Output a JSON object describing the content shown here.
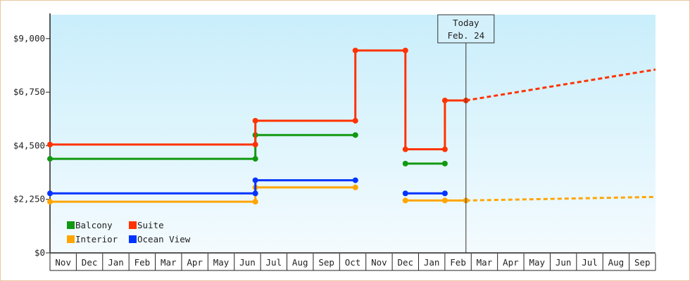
{
  "chart_data": {
    "type": "line",
    "title": "",
    "xlabel": "",
    "ylabel": "",
    "ylim": [
      0,
      10000
    ],
    "yticks": [
      "$0",
      "$2,250",
      "$4,500",
      "$6,750",
      "$9,000"
    ],
    "ytick_values": [
      0,
      2250,
      4500,
      6750,
      9000
    ],
    "months": [
      "Nov",
      "Dec",
      "Jan",
      "Feb",
      "Mar",
      "Apr",
      "May",
      "Jun",
      "Jul",
      "Aug",
      "Sep",
      "Oct",
      "Nov",
      "Dec",
      "Jan",
      "Feb",
      "Mar",
      "Apr",
      "May",
      "Jun",
      "Jul",
      "Aug",
      "Sep"
    ],
    "grid": false,
    "legend_position": "bottom-left",
    "today": {
      "line1": "Today",
      "line2": "Feb. 24",
      "x": 15.8
    },
    "series": [
      {
        "name": "Balcony",
        "color": "#119911",
        "segments": [
          [
            [
              0,
              3950
            ],
            [
              7.8,
              3950
            ],
            [
              7.8,
              4950
            ],
            [
              11.6,
              4950
            ]
          ],
          [
            [
              13.5,
              3750
            ],
            [
              15.0,
              3750
            ]
          ]
        ],
        "markers": [
          [
            0,
            3950
          ],
          [
            7.8,
            3950
          ],
          [
            7.8,
            4950
          ],
          [
            11.6,
            4950
          ],
          [
            13.5,
            3750
          ],
          [
            15.0,
            3750
          ]
        ],
        "forecast": []
      },
      {
        "name": "Suite",
        "color": "#ff3300",
        "segments": [
          [
            [
              0,
              4550
            ],
            [
              7.8,
              4550
            ],
            [
              7.8,
              5550
            ],
            [
              11.6,
              5550
            ],
            [
              11.6,
              8500
            ],
            [
              13.5,
              8500
            ],
            [
              13.5,
              4350
            ],
            [
              15.0,
              4350
            ],
            [
              15.0,
              6400
            ],
            [
              15.8,
              6400
            ]
          ]
        ],
        "markers": [
          [
            0,
            4550
          ],
          [
            7.8,
            4550
          ],
          [
            7.8,
            5550
          ],
          [
            11.6,
            5550
          ],
          [
            11.6,
            8500
          ],
          [
            13.5,
            8500
          ],
          [
            13.5,
            4350
          ],
          [
            15.0,
            4350
          ],
          [
            15.0,
            6400
          ],
          [
            15.8,
            6400
          ]
        ],
        "forecast": [
          [
            15.8,
            6400
          ],
          [
            23.0,
            7700
          ]
        ]
      },
      {
        "name": "Interior",
        "color": "#ffa500",
        "segments": [
          [
            [
              0,
              2150
            ],
            [
              7.8,
              2150
            ],
            [
              7.8,
              2750
            ],
            [
              11.6,
              2750
            ]
          ],
          [
            [
              13.5,
              2200
            ],
            [
              15.0,
              2200
            ],
            [
              15.8,
              2200
            ]
          ]
        ],
        "markers": [
          [
            0,
            2150
          ],
          [
            7.8,
            2150
          ],
          [
            7.8,
            2750
          ],
          [
            11.6,
            2750
          ],
          [
            13.5,
            2200
          ],
          [
            15.0,
            2200
          ],
          [
            15.8,
            2200
          ]
        ],
        "forecast": [
          [
            15.8,
            2200
          ],
          [
            23.0,
            2350
          ]
        ]
      },
      {
        "name": "Ocean View",
        "color": "#0033ff",
        "segments": [
          [
            [
              0,
              2500
            ],
            [
              7.8,
              2500
            ],
            [
              7.8,
              3050
            ],
            [
              11.6,
              3050
            ]
          ],
          [
            [
              13.5,
              2500
            ],
            [
              15.0,
              2500
            ]
          ]
        ],
        "markers": [
          [
            0,
            2500
          ],
          [
            7.8,
            2500
          ],
          [
            7.8,
            3050
          ],
          [
            11.6,
            3050
          ],
          [
            13.5,
            2500
          ],
          [
            15.0,
            2500
          ]
        ],
        "forecast": []
      }
    ]
  }
}
